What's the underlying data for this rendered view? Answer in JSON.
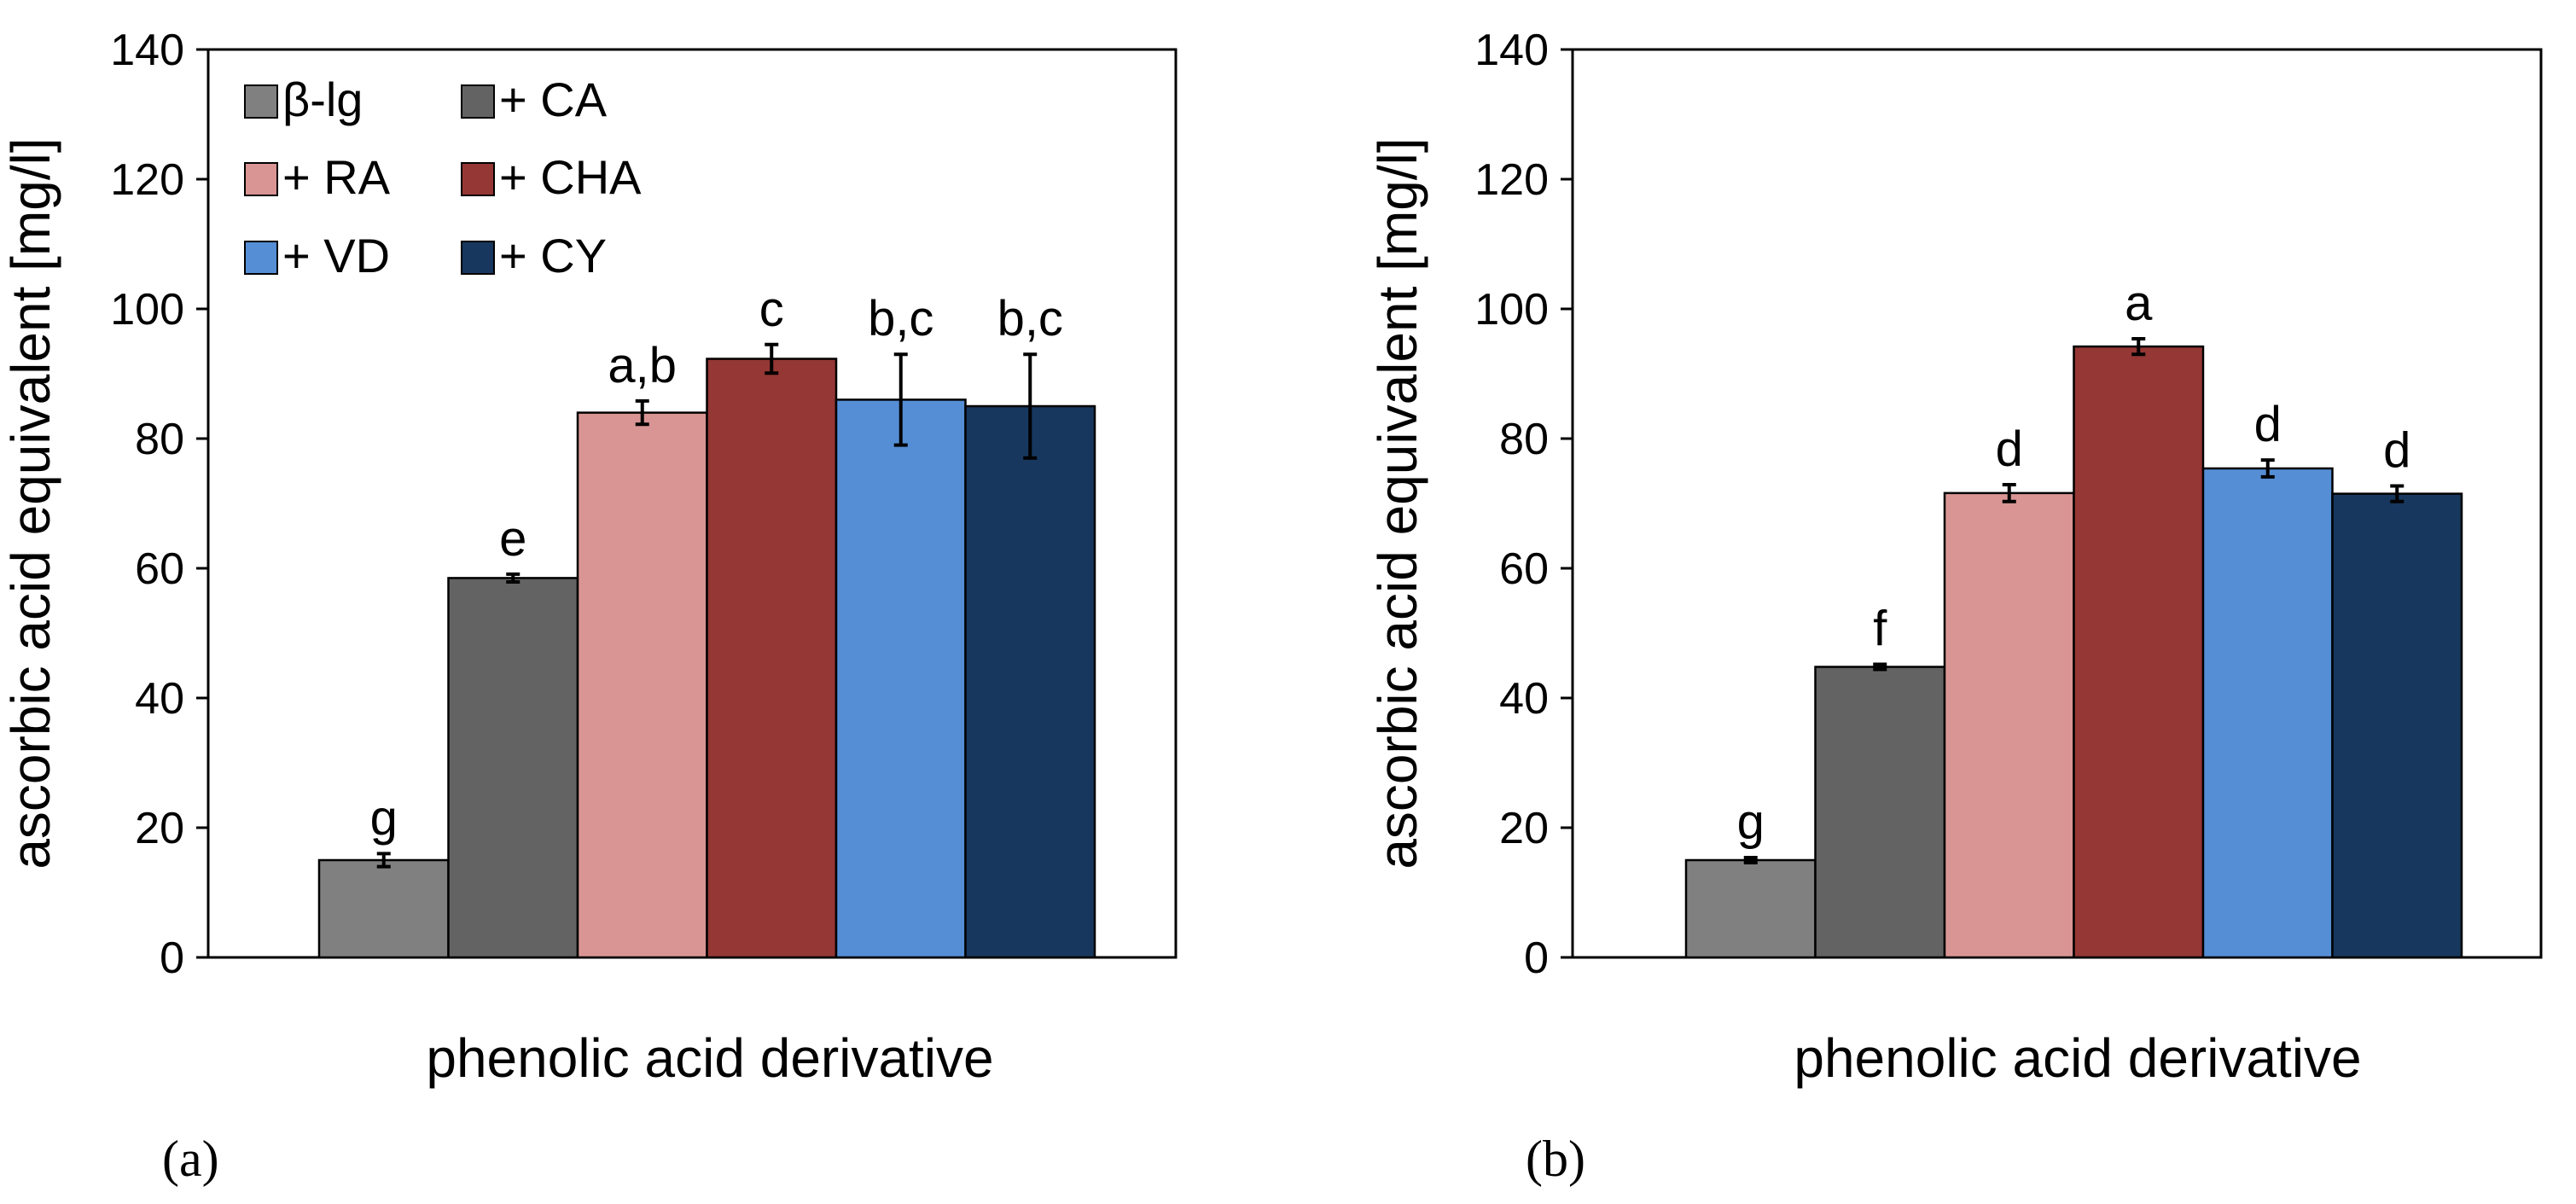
{
  "chart_data": [
    {
      "type": "bar",
      "panel_label": "(a)",
      "xlabel": "phenolic acid derivative",
      "ylabel": "ascorbic acid equivalent [mg/l]",
      "ylim": [
        0,
        140
      ],
      "yticks": [
        "0",
        "20",
        "40",
        "60",
        "80",
        "100",
        "120",
        "140"
      ],
      "legend_position": "top-left",
      "series": [
        {
          "name": "β-lg",
          "value": 15,
          "error": 1,
          "letter": "g",
          "color": "#808080"
        },
        {
          "name": "+ CA",
          "value": 58.5,
          "error": 0.6,
          "letter": "e",
          "color": "#636363"
        },
        {
          "name": "+ RA",
          "value": 84,
          "error": 1.8,
          "letter": "a,b",
          "color": "#d99594"
        },
        {
          "name": "+ CHA",
          "value": 92.3,
          "error": 2.2,
          "letter": "c",
          "color": "#953735"
        },
        {
          "name": "+ VD",
          "value": 86,
          "error": 7,
          "letter": "b,c",
          "color": "#558ed5"
        },
        {
          "name": "+ CY",
          "value": 85,
          "error": 8,
          "letter": "b,c",
          "color": "#17375e"
        }
      ]
    },
    {
      "type": "bar",
      "panel_label": "(b)",
      "xlabel": "phenolic acid derivative",
      "ylabel": "ascorbic acid equivalent [mg/l]",
      "ylim": [
        0,
        140
      ],
      "yticks": [
        "0",
        "20",
        "40",
        "60",
        "80",
        "100",
        "120",
        "140"
      ],
      "series": [
        {
          "name": "β-lg",
          "value": 15,
          "error": 0.4,
          "letter": "g",
          "color": "#808080"
        },
        {
          "name": "+ CA",
          "value": 44.8,
          "error": 0.4,
          "letter": "f",
          "color": "#636363"
        },
        {
          "name": "+ RA",
          "value": 71.6,
          "error": 1.3,
          "letter": "d",
          "color": "#d99594"
        },
        {
          "name": "+ CHA",
          "value": 94.2,
          "error": 1.2,
          "letter": "a",
          "color": "#953735"
        },
        {
          "name": "+ VD",
          "value": 75.4,
          "error": 1.3,
          "letter": "d",
          "color": "#558ed5"
        },
        {
          "name": "+ CY",
          "value": 71.5,
          "error": 1.2,
          "letter": "d",
          "color": "#17375e"
        }
      ]
    }
  ]
}
